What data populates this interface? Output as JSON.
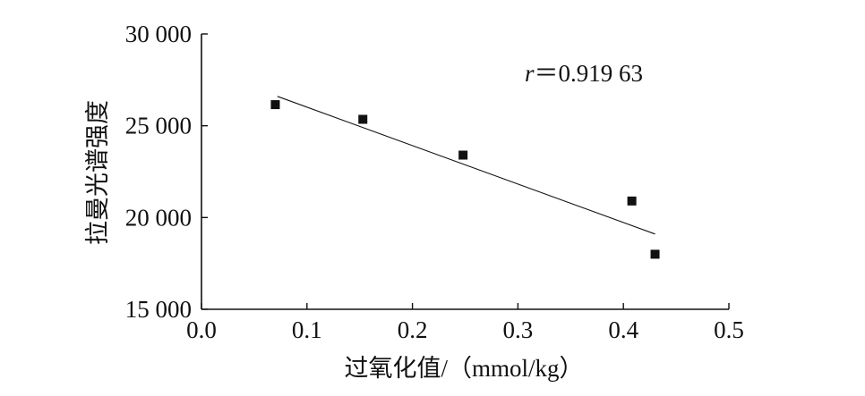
{
  "chart_data": {
    "type": "scatter",
    "title": "",
    "xlabel": "过氧化值/（mmol/kg）",
    "ylabel": "拉曼光谱强度",
    "xlim": [
      0.0,
      0.5
    ],
    "ylim": [
      15000,
      30000
    ],
    "x_ticks": [
      0.0,
      0.1,
      0.2,
      0.3,
      0.4,
      0.5
    ],
    "x_tick_labels": [
      "0.0",
      "0.1",
      "0.2",
      "0.3",
      "0.4",
      "0.5"
    ],
    "y_ticks": [
      15000,
      20000,
      25000,
      30000
    ],
    "y_tick_labels": [
      "15 000",
      "20 000",
      "25 000",
      "30 000"
    ],
    "series": [
      {
        "x": [
          0.07,
          0.153,
          0.248,
          0.408,
          0.43
        ],
        "y": [
          26150,
          25350,
          23400,
          20900,
          18000
        ]
      }
    ],
    "trendline": {
      "x": [
        0.072,
        0.43
      ],
      "y": [
        26600,
        19100
      ]
    },
    "annotation": {
      "r_symbol": "r",
      "r_value": "＝0.919 63"
    },
    "grid": false,
    "legend": "none",
    "colors": {
      "marker": "#111111",
      "line": "#111111",
      "axis": "#111111"
    }
  }
}
